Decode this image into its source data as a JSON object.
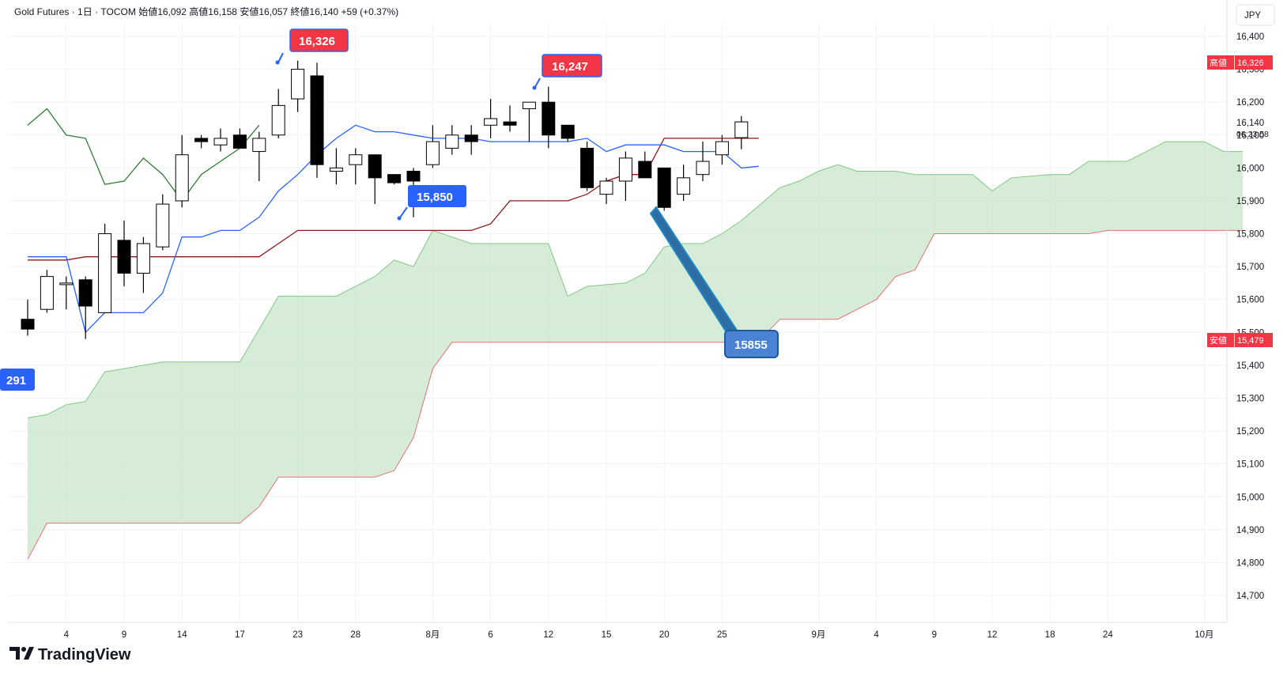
{
  "header": {
    "symbol": "Gold Futures",
    "interval": "1日",
    "exchange": "TOCOM",
    "open_label": "始値",
    "open": "16,092",
    "high_label": "高値",
    "high": "16,158",
    "low_label": "安値",
    "low": "16,057",
    "close_label": "終値",
    "close": "16,140",
    "change": "+59",
    "change_pct": "(+0.37%)"
  },
  "currency": "JPY",
  "last_price": "16,140",
  "countdown": "06:23:58",
  "high_marker": {
    "label": "高値",
    "value": "16,326"
  },
  "low_marker": {
    "label": "安値",
    "value": "15,479"
  },
  "callouts": {
    "high1": "16,326",
    "high2": "16,247",
    "low1": "15,850",
    "target": "15855",
    "offscreen": "291"
  },
  "brand": "TradingView",
  "colors": {
    "bull_fill": "#ffffff",
    "bear_fill": "#000000",
    "candle_line": "#000000",
    "tenkan": "#2962ff",
    "kijun": "#8b1a1a",
    "chikou": "#2e7d32",
    "span_a": "#81c784",
    "span_b": "#e57373",
    "cloud": "#c8e6c9",
    "callout_red": "#f23645",
    "callout_blue": "#2962ff",
    "arrow_blue": "#1e88c7"
  },
  "chart_data": {
    "type": "candlestick",
    "title": "Gold Futures · 1日 · TOCOM",
    "y_axis": {
      "ticks": [
        14700,
        14800,
        14900,
        15000,
        15100,
        15200,
        15300,
        15400,
        15500,
        15600,
        15700,
        15800,
        15900,
        16000,
        16100,
        16200,
        16300,
        16400
      ],
      "range": [
        14655,
        16440
      ],
      "position": "right"
    },
    "x_axis": {
      "labels": [
        {
          "i": 2,
          "t": "4"
        },
        {
          "i": 5,
          "t": "9"
        },
        {
          "i": 8,
          "t": "14"
        },
        {
          "i": 11,
          "t": "17"
        },
        {
          "i": 14,
          "t": "23"
        },
        {
          "i": 17,
          "t": "28"
        },
        {
          "i": 21,
          "t": "8月"
        },
        {
          "i": 24,
          "t": "6"
        },
        {
          "i": 27,
          "t": "12"
        },
        {
          "i": 30,
          "t": "15"
        },
        {
          "i": 33,
          "t": "20"
        },
        {
          "i": 36,
          "t": "25"
        },
        {
          "i": 41,
          "t": "9月"
        },
        {
          "i": 44,
          "t": "4"
        },
        {
          "i": 47,
          "t": "9"
        },
        {
          "i": 50,
          "t": "12"
        },
        {
          "i": 53,
          "t": "18"
        },
        {
          "i": 56,
          "t": "24"
        },
        {
          "i": 61,
          "t": "10月"
        }
      ]
    },
    "candles": [
      {
        "o": 15540,
        "h": 15600,
        "l": 15490,
        "c": 15510
      },
      {
        "o": 15570,
        "h": 15690,
        "l": 15560,
        "c": 15670
      },
      {
        "o": 15650,
        "h": 15670,
        "l": 15570,
        "c": 15650
      },
      {
        "o": 15660,
        "h": 15670,
        "l": 15480,
        "c": 15580
      },
      {
        "o": 15560,
        "h": 15830,
        "l": 15560,
        "c": 15800
      },
      {
        "o": 15780,
        "h": 15840,
        "l": 15640,
        "c": 15680
      },
      {
        "o": 15680,
        "h": 15790,
        "l": 15620,
        "c": 15770
      },
      {
        "o": 15760,
        "h": 15920,
        "l": 15750,
        "c": 15890
      },
      {
        "o": 15900,
        "h": 16100,
        "l": 15880,
        "c": 16040
      },
      {
        "o": 16090,
        "h": 16100,
        "l": 16060,
        "c": 16080
      },
      {
        "o": 16070,
        "h": 16120,
        "l": 16050,
        "c": 16090
      },
      {
        "o": 16100,
        "h": 16120,
        "l": 16060,
        "c": 16060
      },
      {
        "o": 16050,
        "h": 16110,
        "l": 15960,
        "c": 16090
      },
      {
        "o": 16100,
        "h": 16240,
        "l": 16090,
        "c": 16190
      },
      {
        "o": 16210,
        "h": 16326,
        "l": 16170,
        "c": 16300
      },
      {
        "o": 16280,
        "h": 16320,
        "l": 15970,
        "c": 16010
      },
      {
        "o": 15990,
        "h": 16060,
        "l": 15950,
        "c": 16000
      },
      {
        "o": 16010,
        "h": 16060,
        "l": 15950,
        "c": 16040
      },
      {
        "o": 16040,
        "h": 16040,
        "l": 15890,
        "c": 15970
      },
      {
        "o": 15980,
        "h": 15980,
        "l": 15950,
        "c": 15955
      },
      {
        "o": 15990,
        "h": 16000,
        "l": 15850,
        "c": 15960
      },
      {
        "o": 16010,
        "h": 16130,
        "l": 16000,
        "c": 16080
      },
      {
        "o": 16060,
        "h": 16130,
        "l": 16040,
        "c": 16100
      },
      {
        "o": 16100,
        "h": 16130,
        "l": 16040,
        "c": 16080
      },
      {
        "o": 16130,
        "h": 16210,
        "l": 16090,
        "c": 16150
      },
      {
        "o": 16140,
        "h": 16190,
        "l": 16110,
        "c": 16130
      },
      {
        "o": 16180,
        "h": 16200,
        "l": 16080,
        "c": 16200
      },
      {
        "o": 16200,
        "h": 16247,
        "l": 16060,
        "c": 16100
      },
      {
        "o": 16130,
        "h": 16130,
        "l": 16080,
        "c": 16090
      },
      {
        "o": 16060,
        "h": 16080,
        "l": 15930,
        "c": 15940
      },
      {
        "o": 15920,
        "h": 15970,
        "l": 15890,
        "c": 15960
      },
      {
        "o": 15960,
        "h": 16050,
        "l": 15900,
        "c": 16030
      },
      {
        "o": 16020,
        "h": 16050,
        "l": 15970,
        "c": 15970
      },
      {
        "o": 16000,
        "h": 16000,
        "l": 15870,
        "c": 15880
      },
      {
        "o": 15920,
        "h": 16010,
        "l": 15900,
        "c": 15970
      },
      {
        "o": 15980,
        "h": 16080,
        "l": 15960,
        "c": 16020
      },
      {
        "o": 16040,
        "h": 16100,
        "l": 16010,
        "c": 16080
      },
      {
        "o": 16092,
        "h": 16158,
        "l": 16057,
        "c": 16140
      }
    ],
    "tenkan": [
      [
        0,
        15730
      ],
      [
        2,
        15730
      ],
      [
        3,
        15500
      ],
      [
        4,
        15560
      ],
      [
        6,
        15560
      ],
      [
        7,
        15620
      ],
      [
        8,
        15790
      ],
      [
        9,
        15790
      ],
      [
        10,
        15810
      ],
      [
        11,
        15810
      ],
      [
        12,
        15850
      ],
      [
        13,
        15930
      ],
      [
        14,
        15980
      ],
      [
        15,
        16040
      ],
      [
        16,
        16090
      ],
      [
        17,
        16130
      ],
      [
        18,
        16110
      ],
      [
        19,
        16110
      ],
      [
        20,
        16100
      ],
      [
        21,
        16090
      ],
      [
        23,
        16090
      ],
      [
        24,
        16080
      ],
      [
        26,
        16080
      ],
      [
        27,
        16080
      ],
      [
        28,
        16080
      ],
      [
        29,
        16090
      ],
      [
        30,
        16050
      ],
      [
        31,
        16070
      ],
      [
        33,
        16070
      ],
      [
        34,
        16050
      ],
      [
        36,
        16050
      ],
      [
        37,
        16000
      ],
      [
        37.9,
        16005
      ]
    ],
    "kijun": [
      [
        0,
        15720
      ],
      [
        2,
        15720
      ],
      [
        3,
        15730
      ],
      [
        12,
        15730
      ],
      [
        13,
        15770
      ],
      [
        14,
        15810
      ],
      [
        23,
        15810
      ],
      [
        24,
        15830
      ],
      [
        25,
        15900
      ],
      [
        28,
        15900
      ],
      [
        29,
        15920
      ],
      [
        30,
        15960
      ],
      [
        31,
        15980
      ],
      [
        32,
        15980
      ],
      [
        33,
        16090
      ],
      [
        37.9,
        16090
      ]
    ],
    "chikou": [
      [
        0,
        16130
      ],
      [
        1,
        16180
      ],
      [
        2,
        16100
      ],
      [
        3,
        16090
      ],
      [
        4,
        15950
      ],
      [
        5,
        15960
      ],
      [
        6,
        16030
      ],
      [
        7,
        15980
      ],
      [
        8,
        15900
      ],
      [
        9,
        15980
      ],
      [
        10,
        16020
      ],
      [
        11,
        16060
      ],
      [
        12,
        16130
      ]
    ],
    "span_a": [
      [
        0,
        15240
      ],
      [
        1,
        15250
      ],
      [
        2,
        15280
      ],
      [
        3,
        15290
      ],
      [
        4,
        15380
      ],
      [
        5,
        15390
      ],
      [
        6,
        15400
      ],
      [
        7,
        15410
      ],
      [
        11,
        15410
      ],
      [
        12,
        15510
      ],
      [
        13,
        15610
      ],
      [
        16,
        15610
      ],
      [
        17,
        15640
      ],
      [
        18,
        15670
      ],
      [
        19,
        15720
      ],
      [
        20,
        15700
      ],
      [
        21,
        15810
      ],
      [
        22,
        15790
      ],
      [
        23,
        15770
      ],
      [
        27,
        15770
      ],
      [
        28,
        15610
      ],
      [
        29,
        15640
      ],
      [
        31,
        15650
      ],
      [
        32,
        15680
      ],
      [
        33,
        15760
      ],
      [
        34,
        15770
      ],
      [
        35,
        15770
      ],
      [
        36,
        15800
      ],
      [
        37,
        15840
      ],
      [
        38,
        15890
      ],
      [
        39,
        15940
      ],
      [
        40,
        15960
      ],
      [
        41,
        15990
      ],
      [
        42,
        16010
      ],
      [
        43,
        15990
      ],
      [
        45,
        15990
      ],
      [
        46,
        15980
      ],
      [
        49,
        15980
      ],
      [
        50,
        15930
      ],
      [
        51,
        15970
      ],
      [
        53,
        15980
      ],
      [
        54,
        15980
      ],
      [
        55,
        16020
      ],
      [
        57,
        16020
      ],
      [
        58,
        16050
      ],
      [
        59,
        16080
      ],
      [
        61,
        16080
      ],
      [
        62,
        16050
      ],
      [
        63,
        16050
      ]
    ],
    "span_b": [
      [
        0,
        14810
      ],
      [
        1,
        14920
      ],
      [
        11,
        14920
      ],
      [
        12,
        14970
      ],
      [
        13,
        15060
      ],
      [
        18,
        15060
      ],
      [
        19,
        15080
      ],
      [
        20,
        15180
      ],
      [
        21,
        15390
      ],
      [
        22,
        15470
      ],
      [
        37,
        15470
      ],
      [
        38,
        15480
      ],
      [
        39,
        15540
      ],
      [
        42,
        15540
      ],
      [
        43,
        15570
      ],
      [
        44,
        15600
      ],
      [
        45,
        15670
      ],
      [
        46,
        15690
      ],
      [
        47,
        15800
      ],
      [
        55,
        15800
      ],
      [
        56,
        15810
      ],
      [
        63,
        15810
      ]
    ],
    "annotations": [
      {
        "type": "callout",
        "text": "16,326",
        "anchor": [
          14,
          16326
        ]
      },
      {
        "type": "callout",
        "text": "16,247",
        "anchor": [
          27,
          16247
        ]
      },
      {
        "type": "callout",
        "text": "15,850",
        "anchor": [
          20,
          15850
        ]
      },
      {
        "type": "arrow-callout",
        "text": "15855",
        "from": [
          33,
          15855
        ],
        "to": [
          37,
          15470
        ]
      }
    ],
    "grid": true,
    "legend": "top-left"
  }
}
